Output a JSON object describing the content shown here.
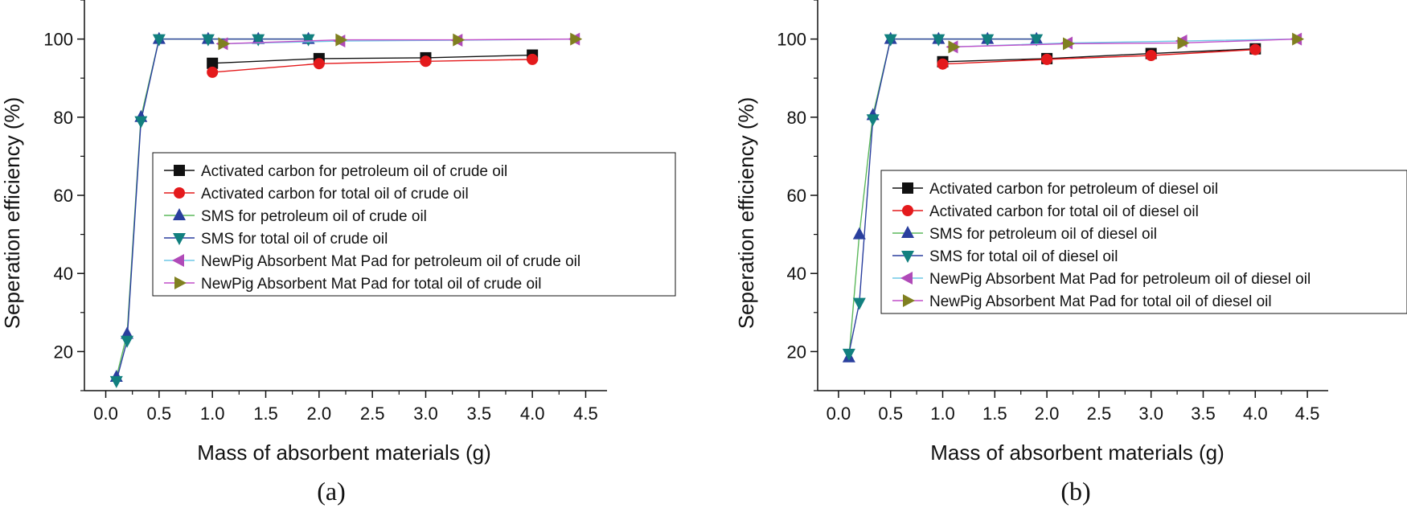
{
  "chart_data": [
    {
      "type": "line",
      "panel_label": "(a)",
      "xlabel": "Mass of absorbent materials (g)",
      "ylabel": "Seperation efficiency (%)",
      "xlim": [
        -0.2,
        4.7
      ],
      "ylim": [
        10,
        110
      ],
      "xticks": [
        0.0,
        0.5,
        1.0,
        1.5,
        2.0,
        2.5,
        3.0,
        3.5,
        4.0,
        4.5
      ],
      "xtick_labels": [
        "0.0",
        "0.5",
        "1.0",
        "1.5",
        "2.0",
        "2.5",
        "3.0",
        "3.5",
        "4.0",
        "4.5"
      ],
      "yticks": [
        20,
        40,
        60,
        80,
        100
      ],
      "ytick_labels": [
        "20",
        "40",
        "60",
        "80",
        "100"
      ],
      "legend_position": "center-right",
      "series": [
        {
          "name": "Activated carbon for petroleum oil of crude oil",
          "color": "#111111",
          "marker": "square",
          "x": [
            1.0,
            2.0,
            3.0,
            4.0
          ],
          "y": [
            93.8,
            95.0,
            95.2,
            95.9
          ]
        },
        {
          "name": "Activated carbon for total oil of crude oil",
          "color": "#e41a1c",
          "marker": "circle",
          "x": [
            1.0,
            2.0,
            3.0,
            4.0
          ],
          "y": [
            91.5,
            93.7,
            94.3,
            94.8
          ]
        },
        {
          "name": "SMS for petroleum oil of crude oil",
          "color": "#2a3f9e",
          "line_color": "#5cb85c",
          "marker": "triangle-up",
          "x": [
            0.1,
            0.2,
            0.33,
            0.5,
            0.96,
            1.43,
            1.9
          ],
          "y": [
            13.5,
            24.5,
            80.0,
            100.0,
            100.0,
            100.0,
            100.0
          ]
        },
        {
          "name": "SMS for total oil of crude oil",
          "color": "#12807f",
          "line_color": "#2a3f9e",
          "marker": "triangle-down",
          "x": [
            0.1,
            0.2,
            0.33,
            0.5,
            0.96,
            1.43,
            1.9
          ],
          "y": [
            12.5,
            22.8,
            79.0,
            100.0,
            100.0,
            100.0,
            100.0
          ]
        },
        {
          "name": "NewPig Absorbent Mat Pad for petroleum oil of crude oil",
          "color": "#b04ab8",
          "line_color": "#6fc7e6",
          "marker": "triangle-left",
          "x": [
            1.1,
            2.2,
            3.3,
            4.4
          ],
          "y": [
            98.8,
            99.5,
            99.7,
            100.0
          ]
        },
        {
          "name": "NewPig Absorbent Mat Pad for total oil of crude oil",
          "color": "#808020",
          "line_color": "#c04ec9",
          "marker": "triangle-right",
          "x": [
            1.1,
            2.2,
            3.3,
            4.4
          ],
          "y": [
            98.8,
            99.8,
            99.8,
            100.0
          ]
        }
      ]
    },
    {
      "type": "line",
      "panel_label": "(b)",
      "xlabel": "Mass of absorbent materials (g)",
      "ylabel": "Seperation efficiency (%)",
      "xlim": [
        -0.2,
        4.7
      ],
      "ylim": [
        10,
        110
      ],
      "xticks": [
        0.0,
        0.5,
        1.0,
        1.5,
        2.0,
        2.5,
        3.0,
        3.5,
        4.0,
        4.5
      ],
      "xtick_labels": [
        "0.0",
        "0.5",
        "1.0",
        "1.5",
        "2.0",
        "2.5",
        "3.0",
        "3.5",
        "4.0",
        "4.5"
      ],
      "yticks": [
        20,
        40,
        60,
        80,
        100
      ],
      "ytick_labels": [
        "20",
        "40",
        "60",
        "80",
        "100"
      ],
      "legend_position": "center-right",
      "series": [
        {
          "name": "Activated carbon for petroleum of diesel oil",
          "color": "#111111",
          "marker": "square",
          "x": [
            1.0,
            2.0,
            3.0,
            4.0
          ],
          "y": [
            94.2,
            95.0,
            96.3,
            97.5
          ]
        },
        {
          "name": "Activated carbon for total oil of diesel oil",
          "color": "#e41a1c",
          "marker": "circle",
          "x": [
            1.0,
            2.0,
            3.0,
            4.0
          ],
          "y": [
            93.6,
            94.8,
            95.8,
            97.3
          ]
        },
        {
          "name": "SMS for petroleum oil of diesel oil",
          "color": "#2a3f9e",
          "line_color": "#5cb85c",
          "marker": "triangle-up",
          "x": [
            0.1,
            0.2,
            0.33,
            0.5,
            0.96,
            1.43,
            1.9
          ],
          "y": [
            18.5,
            50.0,
            80.5,
            100.0,
            100.0,
            100.0,
            100.0
          ]
        },
        {
          "name": "SMS for total oil of diesel oil",
          "color": "#12807f",
          "line_color": "#2a3f9e",
          "marker": "triangle-down",
          "x": [
            0.1,
            0.2,
            0.33,
            0.5,
            0.96,
            1.43,
            1.9
          ],
          "y": [
            19.5,
            32.5,
            79.5,
            100.0,
            100.0,
            100.0,
            100.0
          ]
        },
        {
          "name": "NewPig Absorbent Mat Pad for petroleum oil of diesel oil",
          "color": "#b04ab8",
          "line_color": "#6fc7e6",
          "marker": "triangle-left",
          "x": [
            1.1,
            2.2,
            3.3,
            4.4
          ],
          "y": [
            98.0,
            99.0,
            99.5,
            100.0
          ]
        },
        {
          "name": "NewPig Absorbent Mat Pad for total oil of diesel oil",
          "color": "#808020",
          "line_color": "#c04ec9",
          "marker": "triangle-right",
          "x": [
            1.1,
            2.2,
            3.3,
            4.4
          ],
          "y": [
            98.0,
            98.8,
            99.0,
            100.0
          ]
        }
      ]
    }
  ]
}
